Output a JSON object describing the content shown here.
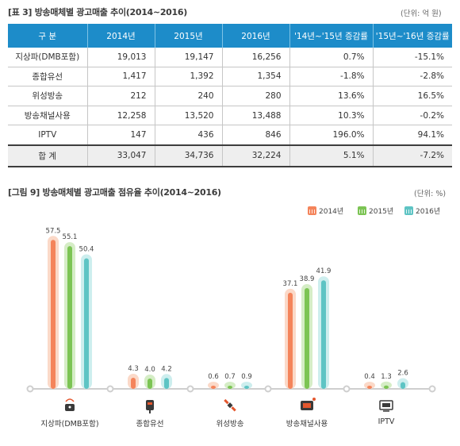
{
  "table": {
    "caption": "[표 3]  방송매체별 광고매출 추이(2014~2016)",
    "unit": "(단위: 억 원)",
    "headers": [
      "구 분",
      "2014년",
      "2015년",
      "2016년",
      "'14년~'15년 증감률",
      "'15년~'16년 증감률"
    ],
    "rows": [
      [
        "지상파(DMB포함)",
        "19,013",
        "19,147",
        "16,256",
        "0.7%",
        "-15.1%"
      ],
      [
        "종합유선",
        "1,417",
        "1,392",
        "1,354",
        "-1.8%",
        "-2.8%"
      ],
      [
        "위성방송",
        "212",
        "240",
        "280",
        "13.6%",
        "16.5%"
      ],
      [
        "방송채널사용",
        "12,258",
        "13,520",
        "13,488",
        "10.3%",
        "-0.2%"
      ],
      [
        "IPTV",
        "147",
        "436",
        "846",
        "196.0%",
        "94.1%"
      ]
    ],
    "total": [
      "합 계",
      "33,047",
      "34,736",
      "32,224",
      "5.1%",
      "-7.2%"
    ]
  },
  "figure": {
    "caption": "[그림 9]  방송매체별 광고매출 점유율 추이(2014~2016)",
    "unit": "(단위: %)"
  },
  "colors": {
    "y2014": "#f4845b",
    "y2015": "#7cc454",
    "y2016": "#5ec4c4",
    "header": "#1d8cc9"
  },
  "icons": [
    "antenna-icon",
    "cable-icon",
    "satellite-icon",
    "channel-tv-icon",
    "iptv-icon"
  ],
  "chart_data": {
    "type": "bar",
    "categories": [
      "지상파(DMB포함)",
      "종합유선",
      "위성방송",
      "방송채널사용",
      "IPTV"
    ],
    "series": [
      {
        "name": "2014년",
        "values": [
          57.5,
          4.3,
          0.6,
          37.1,
          0.4
        ]
      },
      {
        "name": "2015년",
        "values": [
          55.1,
          4.0,
          0.7,
          38.9,
          1.3
        ]
      },
      {
        "name": "2016년",
        "values": [
          50.4,
          4.2,
          0.9,
          41.9,
          2.6
        ]
      }
    ],
    "ylim": [
      0,
      60
    ],
    "legend_position": "top-right"
  }
}
